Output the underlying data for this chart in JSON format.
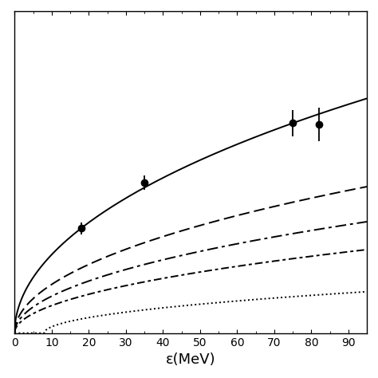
{
  "xlabel": "ε(MeV)",
  "xlim": [
    0,
    95
  ],
  "ylim_plot": [
    0,
    1.35
  ],
  "ylim_visible": [
    0,
    1.35
  ],
  "xticks": [
    0,
    10,
    20,
    30,
    40,
    50,
    60,
    70,
    80,
    90
  ],
  "data_points": {
    "x": [
      18,
      35,
      75,
      82
    ],
    "y": [
      0.44,
      0.63,
      0.88,
      0.875
    ],
    "yerr": [
      0.025,
      0.03,
      0.055,
      0.07
    ]
  },
  "background_color": "#ffffff"
}
